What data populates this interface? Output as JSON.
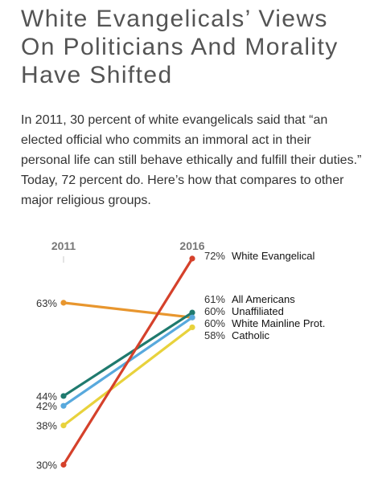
{
  "title": "White Evangelicals’ Views On Politicians And Morality Have Shifted",
  "intro": "In 2011, 30 percent of white evangelicals said that “an elected official who commits an immoral act in their personal life can still behave ethically and fulfill their duties.” Today, 72 percent do. Here’s how that compares to other major religious groups.",
  "chart_data": {
    "type": "line",
    "x": [
      "2011",
      "2016"
    ],
    "series": [
      {
        "name": "White Evangelical",
        "values": [
          30,
          72
        ],
        "color": "#d5412b"
      },
      {
        "name": "All Americans",
        "values": [
          44,
          61
        ],
        "color": "#1f7a6e"
      },
      {
        "name": "Unaffiliated",
        "values": [
          63,
          60
        ],
        "color": "#e8962e"
      },
      {
        "name": "White Mainline Prot.",
        "values": [
          42,
          60
        ],
        "color": "#58a9dd"
      },
      {
        "name": "Catholic",
        "values": [
          38,
          58
        ],
        "color": "#e8d23c"
      }
    ],
    "value_suffix": "%",
    "left_labels": [
      {
        "series": 2,
        "text": "63%"
      },
      {
        "series": 1,
        "text": "44%"
      },
      {
        "series": 3,
        "text": "42%"
      },
      {
        "series": 4,
        "text": "38%"
      },
      {
        "series": 0,
        "text": "30%"
      }
    ],
    "right_labels": [
      {
        "series": 0,
        "text": "72%"
      },
      {
        "series": 1,
        "text": "61%"
      },
      {
        "series": 2,
        "text": "60%"
      },
      {
        "series": 3,
        "text": "60%"
      },
      {
        "series": 4,
        "text": "58%"
      }
    ]
  }
}
